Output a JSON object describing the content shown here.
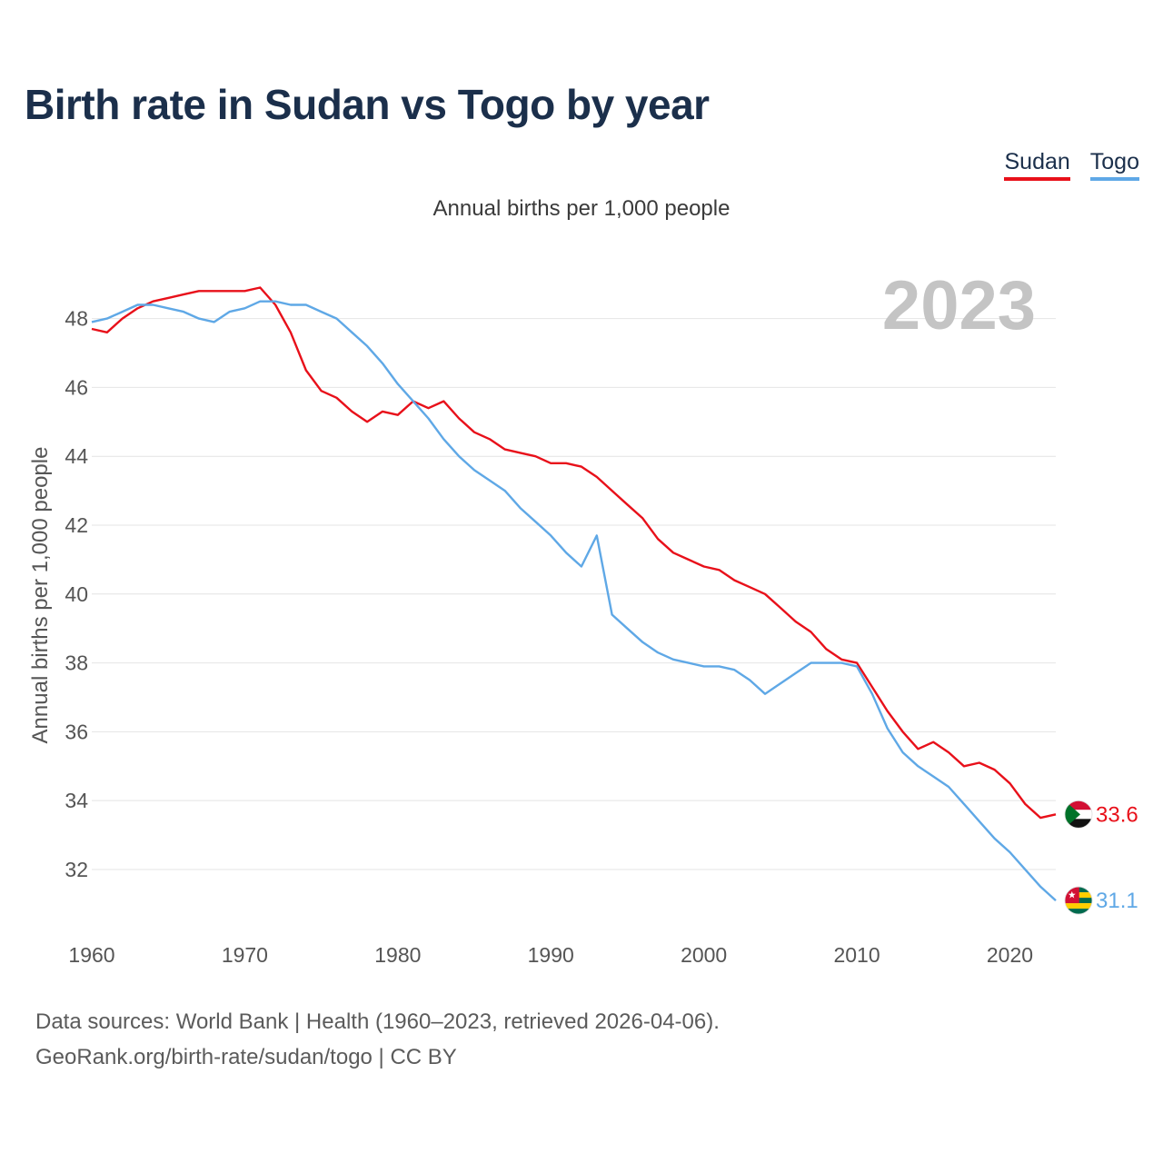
{
  "title": "Birth rate in Sudan vs Togo by year",
  "legend": [
    {
      "label": "Sudan",
      "color": "#e8101a"
    },
    {
      "label": "Togo",
      "color": "#5fa8e6"
    }
  ],
  "chart_data": {
    "type": "line",
    "title": "Birth rate in Sudan vs Togo by year",
    "subtitle": "Annual births per 1,000 people",
    "xlabel": "",
    "ylabel": "Annual births per 1,000 people",
    "year_label": "2023",
    "xlim": [
      1960,
      2023
    ],
    "ylim": [
      30.6,
      49.6
    ],
    "xticks": [
      1960,
      1970,
      1980,
      1990,
      2000,
      2010,
      2020
    ],
    "yticks": [
      32,
      34,
      36,
      38,
      40,
      42,
      44,
      46,
      48
    ],
    "grid": true,
    "x": [
      1960,
      1961,
      1962,
      1963,
      1964,
      1965,
      1966,
      1967,
      1968,
      1969,
      1970,
      1971,
      1972,
      1973,
      1974,
      1975,
      1976,
      1977,
      1978,
      1979,
      1980,
      1981,
      1982,
      1983,
      1984,
      1985,
      1986,
      1987,
      1988,
      1989,
      1990,
      1991,
      1992,
      1993,
      1994,
      1995,
      1996,
      1997,
      1998,
      1999,
      2000,
      2001,
      2002,
      2003,
      2004,
      2005,
      2006,
      2007,
      2008,
      2009,
      2010,
      2011,
      2012,
      2013,
      2014,
      2015,
      2016,
      2017,
      2018,
      2019,
      2020,
      2021,
      2022,
      2023
    ],
    "series": [
      {
        "name": "Sudan",
        "color": "#e8101a",
        "end_label": "33.6",
        "flag_icon": "sudan-flag-icon",
        "values": [
          47.7,
          47.6,
          48.0,
          48.3,
          48.5,
          48.6,
          48.7,
          48.8,
          48.8,
          48.8,
          48.8,
          48.9,
          48.4,
          47.6,
          46.5,
          45.9,
          45.7,
          45.3,
          45.0,
          45.3,
          45.2,
          45.6,
          45.4,
          45.6,
          45.1,
          44.7,
          44.5,
          44.2,
          44.1,
          44.0,
          43.8,
          43.8,
          43.7,
          43.4,
          43.0,
          42.6,
          42.2,
          41.6,
          41.2,
          41.0,
          40.8,
          40.7,
          40.4,
          40.2,
          40.0,
          39.6,
          39.2,
          38.9,
          38.4,
          38.1,
          38.0,
          37.3,
          36.6,
          36.0,
          35.5,
          35.7,
          35.4,
          35.0,
          35.1,
          34.9,
          34.5,
          33.9,
          33.5,
          33.6
        ]
      },
      {
        "name": "Togo",
        "color": "#5fa8e6",
        "end_label": "31.1",
        "flag_icon": "togo-flag-icon",
        "values": [
          47.9,
          48.0,
          48.2,
          48.4,
          48.4,
          48.3,
          48.2,
          48.0,
          47.9,
          48.2,
          48.3,
          48.5,
          48.5,
          48.4,
          48.4,
          48.2,
          48.0,
          47.6,
          47.2,
          46.7,
          46.1,
          45.6,
          45.1,
          44.5,
          44.0,
          43.6,
          43.3,
          43.0,
          42.5,
          42.1,
          41.7,
          41.2,
          40.8,
          41.7,
          39.4,
          39.0,
          38.6,
          38.3,
          38.1,
          38.0,
          37.9,
          37.9,
          37.8,
          37.5,
          37.1,
          37.4,
          37.7,
          38.0,
          38.0,
          38.0,
          37.9,
          37.1,
          36.1,
          35.4,
          35.0,
          34.7,
          34.4,
          33.9,
          33.4,
          32.9,
          32.5,
          32.0,
          31.5,
          31.1
        ]
      }
    ]
  },
  "source": {
    "line1": "Data sources: World Bank | Health (1960–2023, retrieved 2026-04-06).",
    "line2": "GeoRank.org/birth-rate/sudan/togo | CC BY"
  }
}
